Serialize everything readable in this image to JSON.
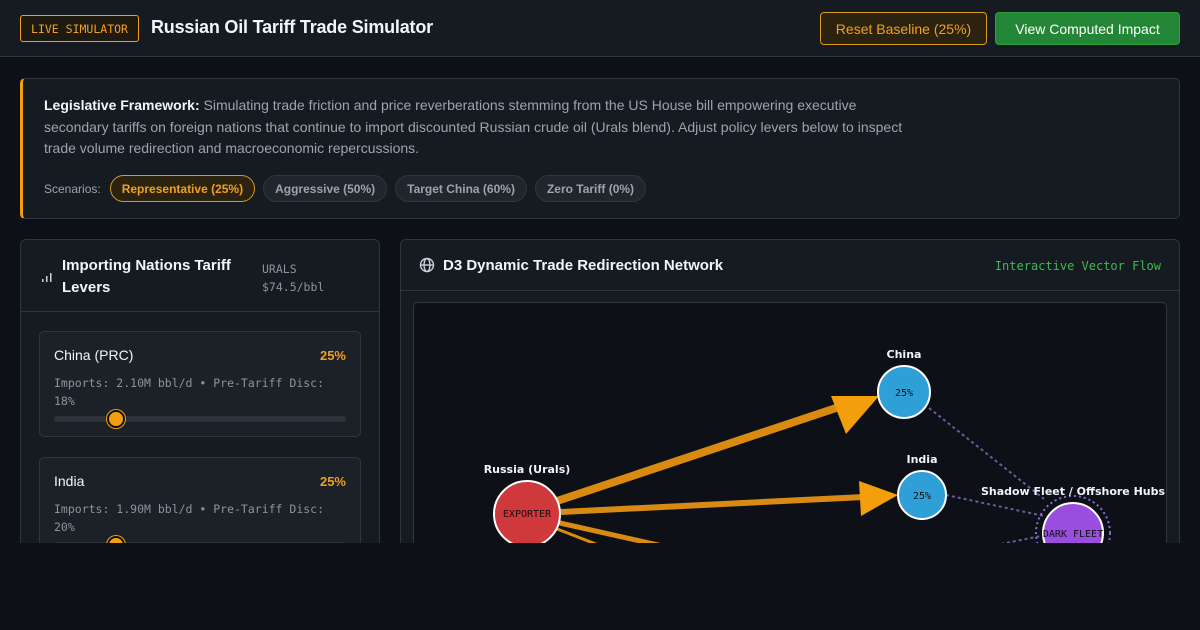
{
  "header": {
    "badge": "LIVE SIMULATOR",
    "title": "Russian Oil Tariff Trade Simulator",
    "buttons": [
      "Reset Baseline (25%)",
      "View Computed Impact"
    ]
  },
  "framework": {
    "label": "Legislative Framework:",
    "text": "Simulating trade friction and price reverberations stemming from the US House bill empowering executive secondary tariffs on foreign nations that continue to import discounted Russian crude oil (Urals blend). Adjust policy levers below to inspect trade volume redirection and macroeconomic repercussions.",
    "scenarios_label": "Scenarios:",
    "scenarios": [
      "Representative (25%)",
      "Aggressive (50%)",
      "Target China (60%)",
      "Zero Tariff (0%)"
    ]
  },
  "levers": {
    "title": "Importing Nations Tariff Levers",
    "price_label": "URALS",
    "price": "$74.5/bbl",
    "nations": [
      {
        "name": "China (PRC)",
        "tariff": "25%",
        "details": "Imports: 2.10M bbl/d • Pre-Tariff Disc: 18%"
      },
      {
        "name": "India",
        "tariff": "25%",
        "details": "Imports: 1.90M bbl/d • Pre-Tariff Disc: 20%"
      }
    ]
  },
  "network": {
    "title": "D3 Dynamic Trade Redirection Network",
    "tag": "Interactive Vector Flow",
    "nodes": [
      {
        "label": "Russia (Urals)",
        "inner": "EXPORTER"
      },
      {
        "label": "China",
        "inner": "25%"
      },
      {
        "label": "India",
        "inner": "25%"
      },
      {
        "label": "Shadow Fleet / Offshore Hubs",
        "inner": "DARK FLEET"
      }
    ]
  }
}
